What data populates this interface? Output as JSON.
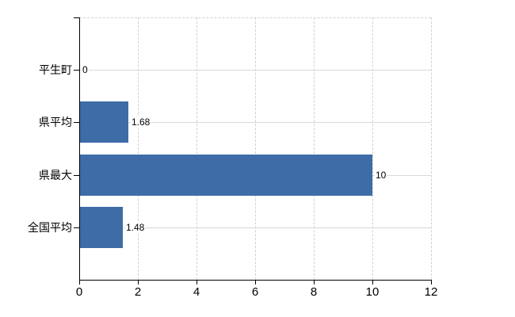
{
  "chart": {
    "bar_color": "#3d6ca7",
    "axis_color": "#000000",
    "grid_color": "#d9d9d9",
    "dashed_grid_color": "#d2d2d2",
    "text_color": "#000000",
    "background": "#ffffff"
  },
  "chart_data": {
    "type": "bar",
    "orientation": "horizontal",
    "title": "",
    "xlabel": "",
    "ylabel": "",
    "categories": [
      "平生町",
      "県平均",
      "県最大",
      "全国平均"
    ],
    "values": [
      0,
      1.68,
      10,
      1.48
    ],
    "value_labels": [
      "0",
      "1.68",
      "10",
      "1.48"
    ],
    "x_ticks": [
      0,
      2,
      4,
      6,
      8,
      10,
      12
    ],
    "x_tick_labels": [
      "0",
      "2",
      "4",
      "6",
      "8",
      "10",
      "12"
    ],
    "xlim": [
      0,
      12
    ],
    "grid": true,
    "grid_horizontal_style": "solid",
    "grid_vertical_style": "dashed",
    "legend": false
  }
}
